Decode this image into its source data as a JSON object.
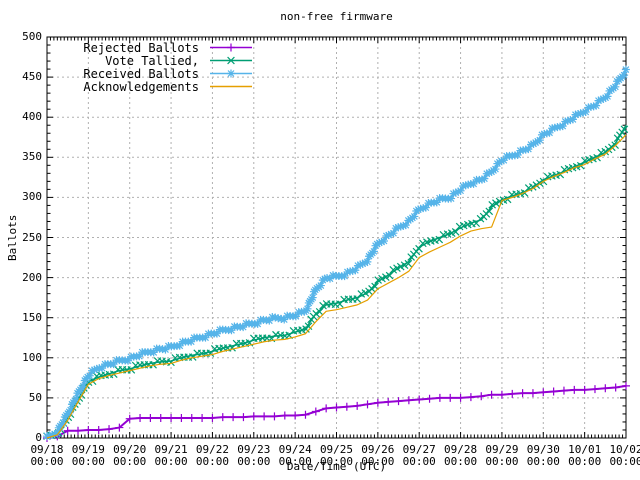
{
  "title": "non-free firmware",
  "colors": {
    "background": "#ffffff",
    "border": "#000000",
    "grid": "#b0b0b0",
    "rejected": "#9400d3",
    "tallied": "#009e73",
    "received": "#56b4e9",
    "acknowledgements": "#e69f00"
  },
  "legend": {
    "items": [
      {
        "label": "Rejected Ballots",
        "color": "#9400d3",
        "marker": "plus"
      },
      {
        "label": "Vote Tallied,",
        "color": "#009e73",
        "marker": "cross"
      },
      {
        "label": "Received Ballots",
        "color": "#56b4e9",
        "marker": "star"
      },
      {
        "label": "Acknowledgements",
        "color": "#e69f00",
        "marker": "none"
      }
    ]
  },
  "axes": {
    "y_ticks": [
      0,
      50,
      100,
      150,
      200,
      250,
      300,
      350,
      400,
      450,
      500
    ],
    "x_ticks": [
      {
        "date": "09/18",
        "time": "00:00"
      },
      {
        "date": "09/19",
        "time": "00:00"
      },
      {
        "date": "09/20",
        "time": "00:00"
      },
      {
        "date": "09/21",
        "time": "00:00"
      },
      {
        "date": "09/22",
        "time": "00:00"
      },
      {
        "date": "09/23",
        "time": "00:00"
      },
      {
        "date": "09/24",
        "time": "00:00"
      },
      {
        "date": "09/25",
        "time": "00:00"
      },
      {
        "date": "09/26",
        "time": "00:00"
      },
      {
        "date": "09/27",
        "time": "00:00"
      },
      {
        "date": "09/28",
        "time": "00:00"
      },
      {
        "date": "09/29",
        "time": "00:00"
      },
      {
        "date": "09/30",
        "time": "00:00"
      },
      {
        "date": "10/01",
        "time": "00:00"
      },
      {
        "date": "10/02",
        "time": "00:00"
      }
    ]
  },
  "chart_data": {
    "type": "line",
    "title": "non-free firmware",
    "xlabel": "Date/Time (UTC)",
    "ylabel": "Ballots",
    "ylim": [
      0,
      500
    ],
    "xlim": [
      0,
      336
    ],
    "x_unit": "hours since 09/18 00:00 UTC",
    "grid": true,
    "legend_position": "top-left",
    "x": [
      0,
      6,
      12,
      18,
      24,
      30,
      36,
      42,
      48,
      54,
      60,
      66,
      72,
      78,
      84,
      90,
      96,
      102,
      108,
      114,
      120,
      126,
      132,
      138,
      144,
      150,
      156,
      162,
      168,
      174,
      180,
      186,
      192,
      198,
      204,
      210,
      216,
      222,
      228,
      234,
      240,
      246,
      252,
      258,
      264,
      270,
      276,
      282,
      288,
      294,
      300,
      306,
      312,
      318,
      324,
      330,
      336
    ],
    "series": [
      {
        "name": "Rejected Ballots",
        "color": "#9400d3",
        "marker": "plus",
        "line_width": 2,
        "values": [
          0,
          2,
          9,
          9,
          10,
          10,
          11,
          13,
          24,
          25,
          25,
          25,
          25,
          25,
          25,
          25,
          25,
          26,
          26,
          26,
          27,
          27,
          27,
          28,
          28,
          29,
          33,
          37,
          38,
          39,
          40,
          42,
          44,
          45,
          46,
          47,
          48,
          49,
          50,
          50,
          50,
          51,
          52,
          54,
          54,
          55,
          56,
          56,
          57,
          58,
          59,
          60,
          60,
          61,
          62,
          63,
          65
        ]
      },
      {
        "name": "Vote Tallied,",
        "color": "#009e73",
        "marker": "cross",
        "line_width": 1.5,
        "values": [
          0,
          5,
          25,
          48,
          70,
          76,
          80,
          84,
          86,
          90,
          93,
          95,
          96,
          100,
          103,
          105,
          108,
          112,
          115,
          118,
          122,
          125,
          127,
          128,
          132,
          136,
          155,
          166,
          168,
          172,
          175,
          181,
          195,
          203,
          212,
          220,
          238,
          245,
          250,
          255,
          262,
          268,
          272,
          288,
          297,
          302,
          306,
          312,
          322,
          327,
          332,
          338,
          344,
          350,
          356,
          368,
          390
        ]
      },
      {
        "name": "Received Ballots",
        "color": "#56b4e9",
        "marker": "star",
        "line_width": 1.8,
        "values": [
          0,
          8,
          30,
          55,
          78,
          88,
          92,
          96,
          99,
          104,
          108,
          111,
          113,
          118,
          122,
          126,
          130,
          134,
          137,
          140,
          143,
          147,
          149,
          150,
          153,
          158,
          185,
          200,
          201,
          205,
          212,
          222,
          242,
          252,
          262,
          270,
          285,
          292,
          297,
          300,
          310,
          318,
          322,
          332,
          347,
          352,
          358,
          365,
          378,
          385,
          392,
          400,
          408,
          415,
          425,
          440,
          458
        ]
      },
      {
        "name": "Acknowledgements",
        "color": "#e69f00",
        "marker": "none",
        "line_width": 1.2,
        "values": [
          0,
          4,
          22,
          45,
          67,
          74,
          78,
          81,
          84,
          87,
          90,
          92,
          93,
          97,
          100,
          102,
          104,
          108,
          111,
          114,
          117,
          120,
          122,
          123,
          126,
          130,
          145,
          158,
          160,
          163,
          166,
          172,
          186,
          193,
          200,
          208,
          225,
          232,
          238,
          244,
          252,
          258,
          261,
          263,
          296,
          300,
          305,
          311,
          320,
          326,
          331,
          337,
          341,
          348,
          354,
          365,
          378
        ]
      }
    ]
  }
}
